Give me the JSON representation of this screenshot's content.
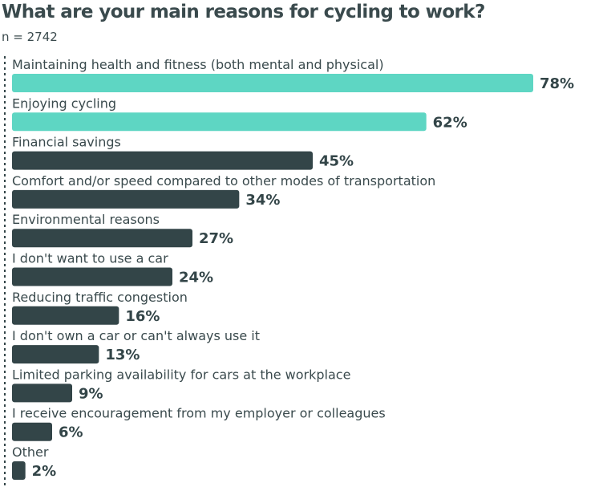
{
  "title": "What are your main reasons for cycling to work?",
  "subtitle": "n = 2742",
  "colors": {
    "highlight": "#5ed6c3",
    "default": "#334548",
    "axis": "#334548"
  },
  "chart_data": {
    "type": "bar",
    "orientation": "horizontal",
    "title": "What are your main reasons for cycling to work?",
    "subtitle": "n = 2742",
    "categories": [
      "Maintaining health and fitness (both mental and physical)",
      "Enjoying cycling",
      "Financial savings",
      "Comfort and/or speed compared to other modes of transportation",
      "Environmental reasons",
      "I don't want to use a car",
      "Reducing traffic congestion",
      "I don't own a car or can't always use it",
      "Limited parking availability for cars at the workplace",
      "I receive encouragement from my employer or colleagues",
      "Other"
    ],
    "values": [
      78,
      62,
      45,
      34,
      27,
      24,
      16,
      13,
      9,
      6,
      2
    ],
    "value_labels": [
      "78%",
      "62%",
      "45%",
      "34%",
      "27%",
      "24%",
      "16%",
      "13%",
      "9%",
      "6%",
      "2%"
    ],
    "highlighted": [
      true,
      true,
      false,
      false,
      false,
      false,
      false,
      false,
      false,
      false,
      false
    ],
    "unit": "%",
    "xlim": [
      0,
      78
    ],
    "grid": false,
    "axis_line": "dashed-left"
  }
}
